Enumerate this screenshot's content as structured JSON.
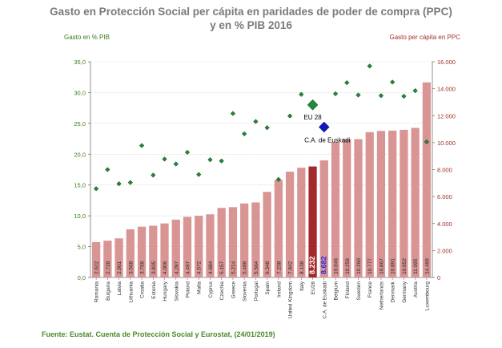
{
  "chart_data": {
    "type": "bar",
    "title_line1": "Gasto en Protección Social per cápita en paridades de poder de compra (PPC)",
    "title_line2": "y en % PIB 2016",
    "ylabel_left": "Gasto en % PIB",
    "ylabel_right": "Gasto per cápita en PPC",
    "source": "Fuente: Eustat. Cuenta de Protección Social y Eurostat, (24/01/2019)",
    "ylim_left": [
      0,
      35
    ],
    "ylim_right": [
      0,
      16000
    ],
    "yticks_left": [
      "0,0",
      "5,0",
      "10,0",
      "15,0",
      "20,0",
      "25,0",
      "30,0",
      "35,0"
    ],
    "yticks_right": [
      "0",
      "2.000",
      "4.000",
      "6.000",
      "8.000",
      "10.000",
      "12.000",
      "14.000",
      "16.000"
    ],
    "categories": [
      "Romania",
      "Bulgaria",
      "Latvia",
      "Lithuania",
      "Croatia",
      "Estonia",
      "Hungary",
      "Slovakia",
      "Poland",
      "Malta",
      "Cyprus",
      "Czechia",
      "Greece",
      "Slovenia",
      "Portugal",
      "Spain",
      "Ireland",
      "United Kingdom",
      "Italy",
      "EU28",
      "C.A. de Euskadi",
      "Belgium",
      "Finland",
      "Sweden",
      "France",
      "Netherlands",
      "Denmark",
      "Germany",
      "Austria",
      "Luxembourg"
    ],
    "bar_labels": [
      "2.622",
      "2.728",
      "2.901",
      "3.568",
      "3.766",
      "3.835",
      "4.006",
      "4.287",
      "4.497",
      "4.572",
      "4.684",
      "5.157",
      "5.214",
      "5.488",
      "5.564",
      "6.348",
      "7.238",
      "7.842",
      "8.138",
      "8.232",
      "8.682",
      "10.046",
      "10.259",
      "10.260",
      "10.777",
      "10.867",
      "10.891",
      "10.952",
      "11.095",
      "14.469"
    ],
    "pps_values": [
      2622,
      2728,
      2901,
      3568,
      3766,
      3835,
      4006,
      4287,
      4497,
      4572,
      4684,
      5157,
      5214,
      5488,
      5564,
      6348,
      7238,
      7842,
      8138,
      8232,
      8682,
      10046,
      10259,
      10260,
      10777,
      10867,
      10891,
      10952,
      11095,
      14469
    ],
    "gdp_pct": [
      14.4,
      17.5,
      15.2,
      15.4,
      21.4,
      16.6,
      19.2,
      18.4,
      20.3,
      16.7,
      19.1,
      18.9,
      26.6,
      23.3,
      25.3,
      24.3,
      15.9,
      26.2,
      29.7,
      28.0,
      24.4,
      29.8,
      31.6,
      29.6,
      34.3,
      29.5,
      31.7,
      29.4,
      30.3,
      22.0
    ],
    "highlights": {
      "EU28": "EU 28",
      "C.A. de Euskadi": "C.A. de Euskadi"
    },
    "colors": {
      "bar": "#d99594",
      "bar_eu": "#a3292a",
      "bar_label_eu": "#ffffff",
      "bar_label_euskadi": "#2b2bdc",
      "marker": "#1f8a3c",
      "marker_euskadi": "#1414c8",
      "marker_stroke": "#0a3a10",
      "title": "#7a7a7a",
      "left_axis": "#3c7a1e",
      "right_axis": "#a0302a"
    }
  }
}
